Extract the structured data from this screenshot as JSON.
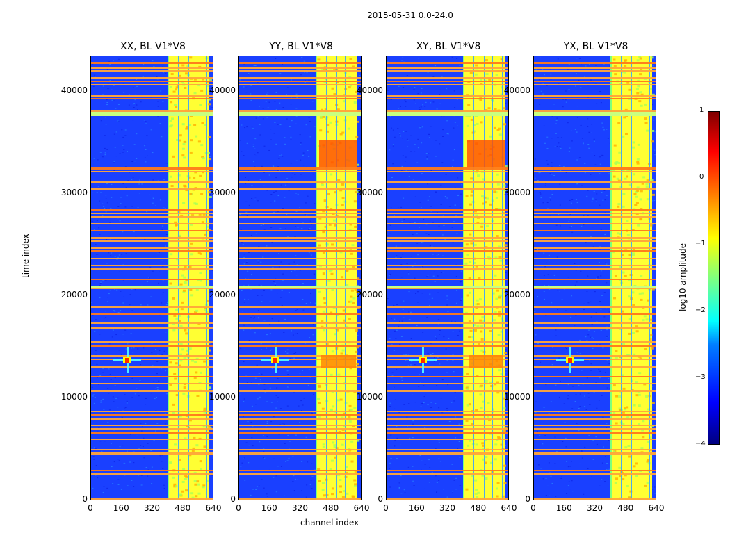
{
  "figure_title": "2015-05-31 0.0-24.0",
  "colorbar": {
    "label": "log10 amplitude",
    "ticks": [
      "1",
      "0",
      "−1",
      "−2",
      "−3",
      "−4"
    ]
  },
  "chart_data": [
    {
      "type": "heatmap",
      "title": "XX, BL V1*V8",
      "xlabel": "",
      "ylabel": "time index",
      "xlim": [
        0,
        640
      ],
      "ylim": [
        0,
        43500
      ],
      "x_ticks": [
        "0",
        "160",
        "320",
        "480",
        "640"
      ],
      "y_ticks": [
        "0",
        "10000",
        "20000",
        "30000",
        "40000"
      ],
      "colorbar_range": [
        -4,
        1
      ]
    },
    {
      "type": "heatmap",
      "title": "YY, BL V1*V8",
      "xlabel": "channel index",
      "ylabel": "",
      "xlim": [
        0,
        640
      ],
      "ylim": [
        0,
        43500
      ],
      "x_ticks": [
        "0",
        "160",
        "320",
        "480",
        "640"
      ],
      "y_ticks": [
        "0",
        "10000",
        "20000",
        "30000",
        "40000"
      ],
      "colorbar_range": [
        -4,
        1
      ]
    },
    {
      "type": "heatmap",
      "title": "XY, BL V1*V8",
      "xlabel": "",
      "ylabel": "",
      "xlim": [
        0,
        640
      ],
      "ylim": [
        0,
        43500
      ],
      "x_ticks": [
        "0",
        "160",
        "320",
        "480",
        "640"
      ],
      "y_ticks": [
        "0",
        "10000",
        "20000",
        "30000",
        "40000"
      ],
      "colorbar_range": [
        -4,
        1
      ]
    },
    {
      "type": "heatmap",
      "title": "YX, BL V1*V8",
      "xlabel": "",
      "ylabel": "",
      "xlim": [
        0,
        640
      ],
      "ylim": [
        0,
        43500
      ],
      "x_ticks": [
        "0",
        "160",
        "320",
        "480",
        "640"
      ],
      "y_ticks": [
        "0",
        "10000",
        "20000",
        "30000",
        "40000"
      ],
      "colorbar_range": [
        -4,
        1
      ]
    }
  ]
}
